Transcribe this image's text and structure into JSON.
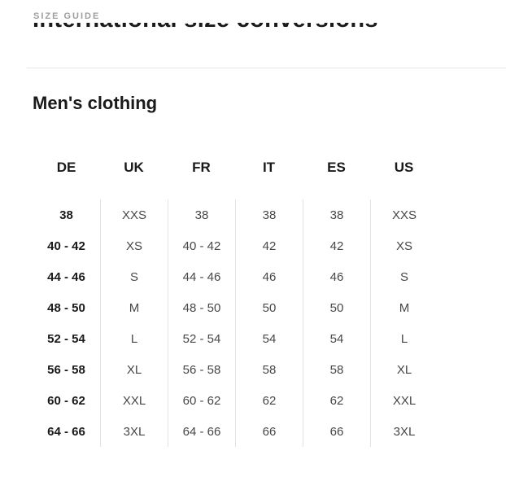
{
  "page": {
    "eyebrow": "SIZE GUIDE",
    "title": "International size conversions"
  },
  "section": {
    "heading": "Men's clothing"
  },
  "size_table": {
    "columns": [
      "DE",
      "UK",
      "FR",
      "IT",
      "ES",
      "US"
    ],
    "rows": [
      [
        "38",
        "XXS",
        "38",
        "38",
        "38",
        "XXS"
      ],
      [
        "40 - 42",
        "XS",
        "40 - 42",
        "42",
        "42",
        "XS"
      ],
      [
        "44 - 46",
        "S",
        "44 - 46",
        "46",
        "46",
        "S"
      ],
      [
        "48 - 50",
        "M",
        "48 - 50",
        "50",
        "50",
        "M"
      ],
      [
        "52 - 54",
        "L",
        "52 - 54",
        "54",
        "54",
        "L"
      ],
      [
        "56 - 58",
        "XL",
        "56 - 58",
        "58",
        "58",
        "XL"
      ],
      [
        "60 - 62",
        "XXL",
        "60 - 62",
        "62",
        "62",
        "XXL"
      ],
      [
        "64 - 66",
        "3XL",
        "64 - 66",
        "66",
        "66",
        "3XL"
      ]
    ]
  },
  "colors": {
    "text_primary": "#1a1a1a",
    "text_secondary": "#474747",
    "eyebrow_gray": "#9e9e9e",
    "divider": "#e3e3e3"
  }
}
